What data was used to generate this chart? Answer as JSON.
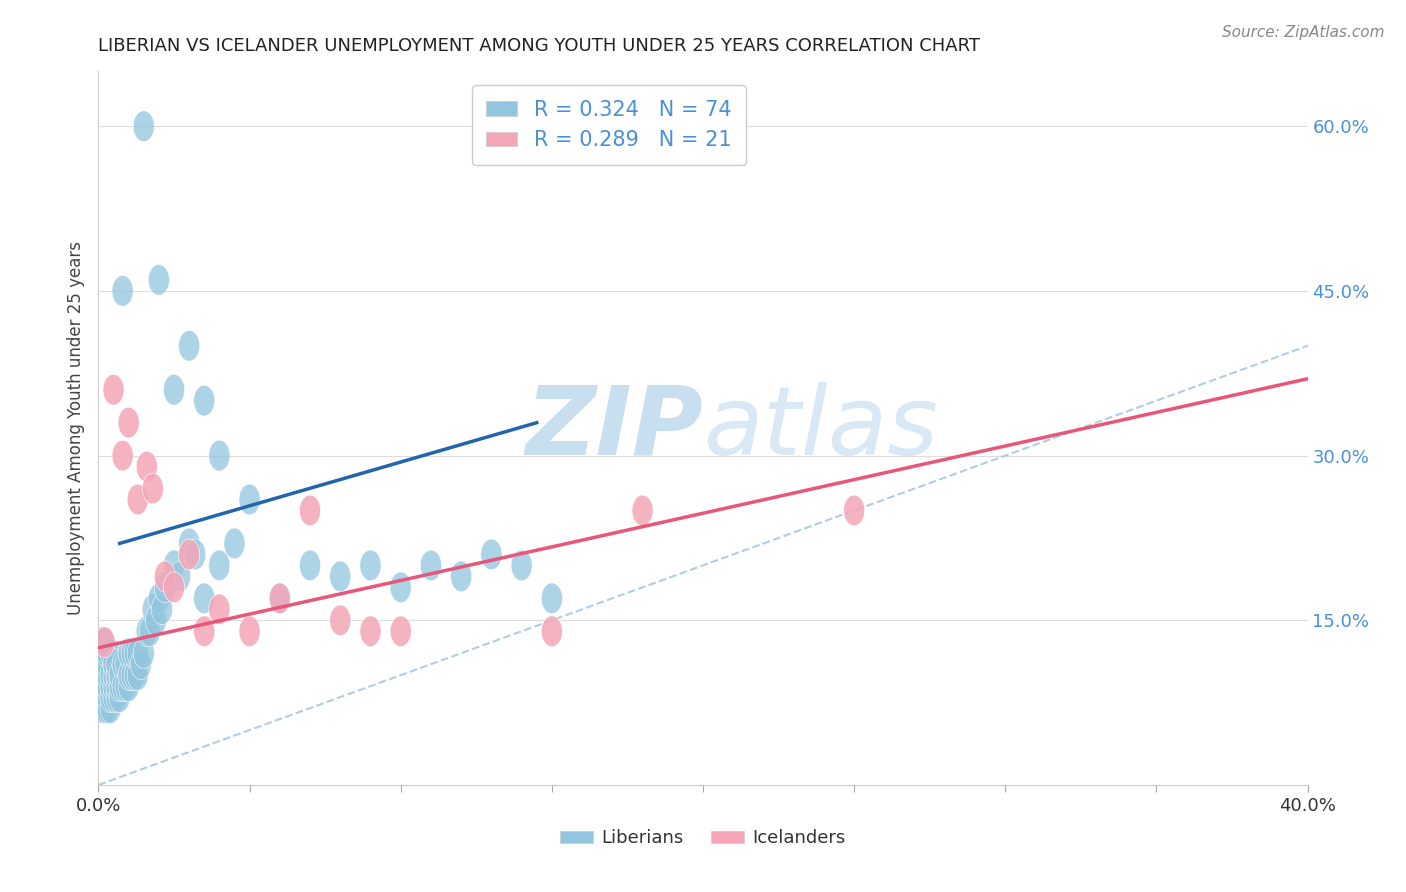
{
  "title": "LIBERIAN VS ICELANDER UNEMPLOYMENT AMONG YOUTH UNDER 25 YEARS CORRELATION CHART",
  "source_text": "Source: ZipAtlas.com",
  "ylabel": "Unemployment Among Youth under 25 years",
  "xlim": [
    0.0,
    0.4
  ],
  "ylim": [
    0.0,
    0.65
  ],
  "liberian_R": 0.324,
  "liberian_N": 74,
  "icelander_R": 0.289,
  "icelander_N": 21,
  "blue_color": "#92c5de",
  "pink_color": "#f4a6b8",
  "blue_line_color": "#2166ac",
  "pink_line_color": "#e8567a",
  "watermark_color": "#c8dff0",
  "title_color": "#222222",
  "ytick_color": "#4a90d9",
  "liberian_x": [
    0.001,
    0.001,
    0.001,
    0.001,
    0.001,
    0.002,
    0.002,
    0.002,
    0.002,
    0.002,
    0.002,
    0.002,
    0.003,
    0.003,
    0.003,
    0.003,
    0.003,
    0.003,
    0.004,
    0.004,
    0.004,
    0.004,
    0.004,
    0.005,
    0.005,
    0.005,
    0.005,
    0.006,
    0.006,
    0.006,
    0.006,
    0.007,
    0.007,
    0.007,
    0.008,
    0.008,
    0.009,
    0.009,
    0.01,
    0.01,
    0.01,
    0.011,
    0.011,
    0.012,
    0.012,
    0.013,
    0.013,
    0.014,
    0.015,
    0.016,
    0.017,
    0.018,
    0.019,
    0.02,
    0.021,
    0.022,
    0.025,
    0.027,
    0.03,
    0.032,
    0.035,
    0.04,
    0.045,
    0.05,
    0.06,
    0.07,
    0.08,
    0.09,
    0.1,
    0.11,
    0.12,
    0.13,
    0.14,
    0.15
  ],
  "liberian_y": [
    0.07,
    0.09,
    0.1,
    0.11,
    0.13,
    0.07,
    0.08,
    0.09,
    0.1,
    0.11,
    0.12,
    0.13,
    0.07,
    0.08,
    0.09,
    0.1,
    0.11,
    0.12,
    0.07,
    0.08,
    0.09,
    0.1,
    0.12,
    0.08,
    0.09,
    0.1,
    0.11,
    0.08,
    0.09,
    0.1,
    0.11,
    0.08,
    0.09,
    0.1,
    0.09,
    0.11,
    0.09,
    0.11,
    0.09,
    0.1,
    0.12,
    0.1,
    0.12,
    0.1,
    0.12,
    0.1,
    0.12,
    0.11,
    0.12,
    0.14,
    0.14,
    0.16,
    0.15,
    0.17,
    0.16,
    0.18,
    0.2,
    0.19,
    0.22,
    0.21,
    0.17,
    0.2,
    0.22,
    0.26,
    0.17,
    0.2,
    0.19,
    0.2,
    0.18,
    0.2,
    0.19,
    0.21,
    0.2,
    0.17
  ],
  "liberian_y_outliers": [
    0.6,
    0.45,
    0.46,
    0.4,
    0.36,
    0.35,
    0.3
  ],
  "liberian_x_outliers": [
    0.015,
    0.008,
    0.02,
    0.03,
    0.025,
    0.035,
    0.04
  ],
  "icelander_x": [
    0.002,
    0.005,
    0.008,
    0.01,
    0.013,
    0.016,
    0.018,
    0.022,
    0.025,
    0.03,
    0.035,
    0.04,
    0.05,
    0.06,
    0.07,
    0.08,
    0.09,
    0.1,
    0.15,
    0.18,
    0.25
  ],
  "icelander_y": [
    0.13,
    0.36,
    0.3,
    0.33,
    0.26,
    0.29,
    0.27,
    0.19,
    0.18,
    0.21,
    0.14,
    0.16,
    0.14,
    0.17,
    0.25,
    0.15,
    0.14,
    0.14,
    0.14,
    0.25,
    0.25
  ],
  "blue_line_x": [
    0.007,
    0.145
  ],
  "blue_line_y": [
    0.22,
    0.33
  ],
  "pink_line_x": [
    0.0,
    0.4
  ],
  "pink_line_y": [
    0.125,
    0.37
  ]
}
